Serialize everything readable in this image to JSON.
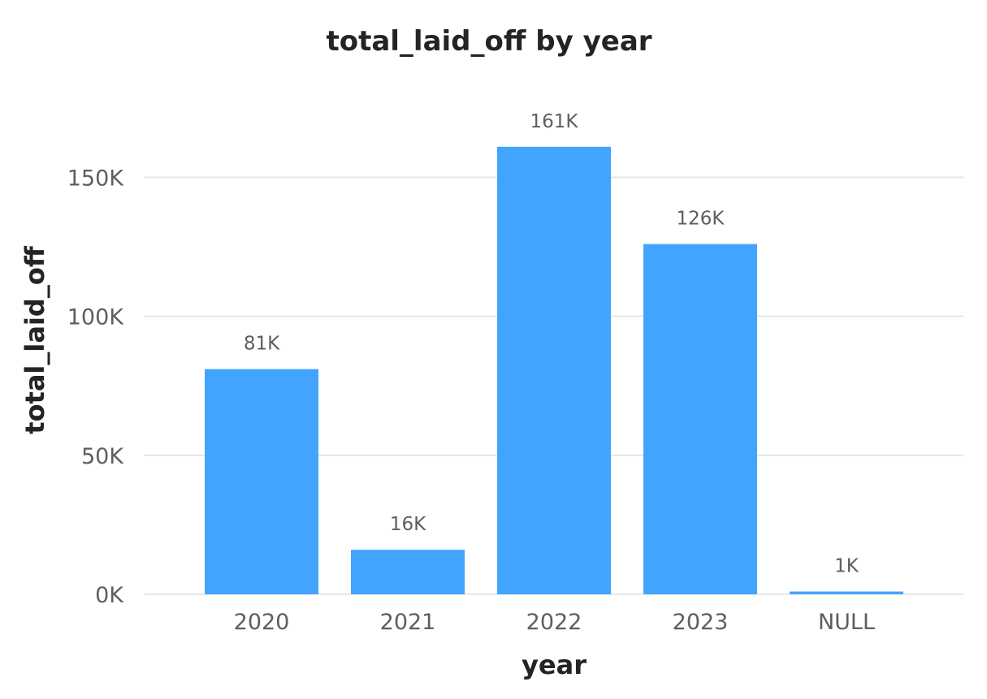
{
  "chart_data": {
    "type": "bar",
    "title": "total_laid_off by year",
    "xlabel": "year",
    "ylabel": "total_laid_off",
    "categories": [
      "2020",
      "2021",
      "2022",
      "2023",
      "NULL"
    ],
    "series": [
      {
        "values": [
          81000,
          16000,
          161000,
          126000,
          1000
        ],
        "data_labels": [
          "81K",
          "16K",
          "161K",
          "126K",
          "1K"
        ],
        "color": "#41a4ff"
      }
    ],
    "ylim": [
      0,
      170000
    ],
    "yticks": [
      {
        "value": 0,
        "label": "0K"
      },
      {
        "value": 50000,
        "label": "50K"
      },
      {
        "value": 100000,
        "label": "100K"
      },
      {
        "value": 150000,
        "label": "150K"
      }
    ],
    "grid": true,
    "legend": "none"
  }
}
